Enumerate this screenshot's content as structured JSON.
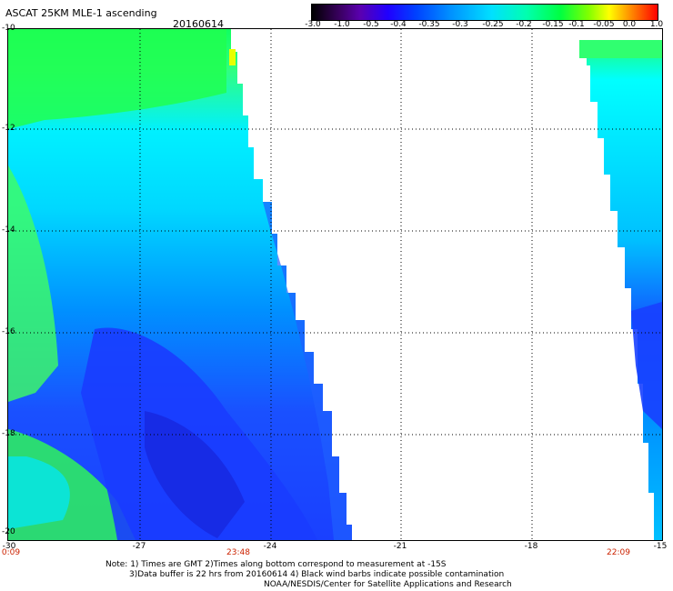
{
  "header": {
    "title": "ASCAT 25KM MLE-1 ascending",
    "date": "20160614"
  },
  "colorbar": {
    "labels": [
      "-3.0",
      "-1.0",
      "-0.5",
      "-0.4",
      "-0.35",
      "-0.3",
      "-0.25",
      "-0.2",
      "-0.15",
      "-0.1",
      "-0.05",
      "0.0",
      "1.0"
    ]
  },
  "map": {
    "lat_labels": [
      "-10",
      "-12",
      "-14",
      "-16",
      "-18",
      "-20"
    ],
    "lon_labels": [
      "-30",
      "-27",
      "-24",
      "-21",
      "-18",
      "-15"
    ],
    "time_labels": [
      "0:09",
      "23:48",
      "22:09"
    ]
  },
  "notes": {
    "line1": "Note: 1) Times are GMT 2)Times along bottom correspond to measurement at -15S",
    "line2": "3)Data buffer is 22 hrs from 20160614 4) Black wind barbs indicate possible contamination",
    "line3": "NOAA/NESDIS/Center for Satellite Applications and Research"
  },
  "colors": {
    "green": "#00ff40",
    "cyan": "#00ffff",
    "light_blue": "#00b0ff",
    "blue": "#0040ff",
    "deep_blue": "#1010ff"
  }
}
